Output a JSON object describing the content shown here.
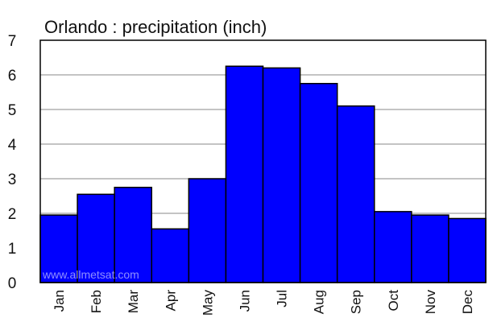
{
  "chart_data": {
    "type": "bar",
    "title": "Orlando : precipitation (inch)",
    "categories": [
      "Jan",
      "Feb",
      "Mar",
      "Apr",
      "May",
      "Jun",
      "Jul",
      "Aug",
      "Sep",
      "Oct",
      "Nov",
      "Dec"
    ],
    "values": [
      1.95,
      2.55,
      2.75,
      1.55,
      3.0,
      6.25,
      6.2,
      5.75,
      5.1,
      2.05,
      1.95,
      1.85
    ],
    "ylim": [
      0,
      7
    ],
    "yticks": [
      "0",
      "1",
      "2",
      "3",
      "4",
      "5",
      "6",
      "7"
    ],
    "grid": true,
    "bar_color": "#0000ff",
    "bar_edge_color": "#000000",
    "grid_color": "#8a8a8a",
    "watermark": "www.allmetsat.com"
  }
}
